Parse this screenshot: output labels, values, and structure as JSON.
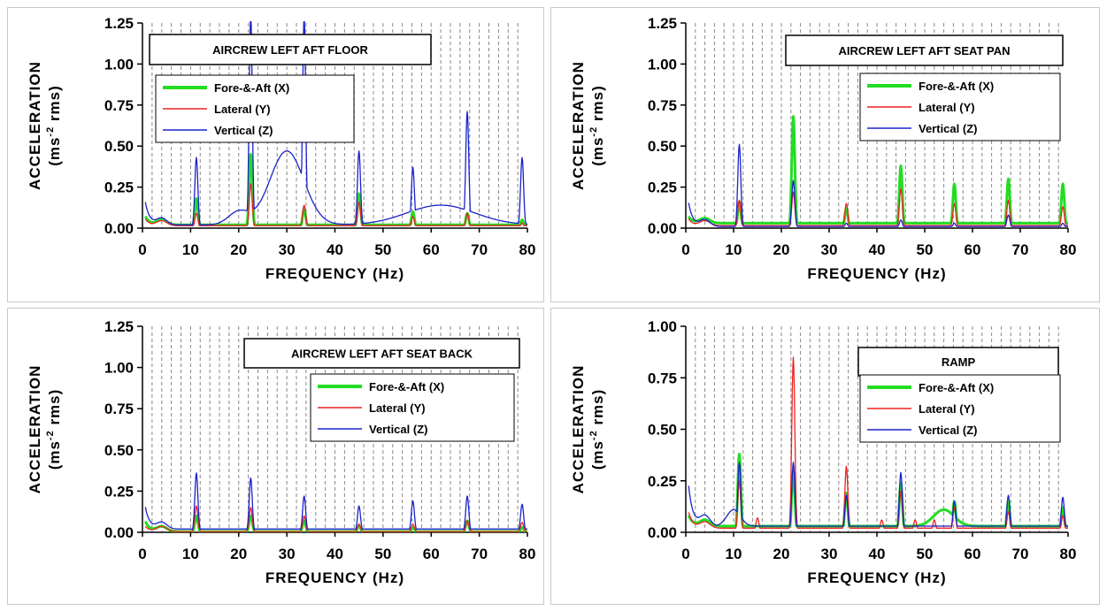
{
  "colors": {
    "fore_aft": "#22dd22",
    "lateral": "#ee2222",
    "vertical": "#1a22cc",
    "grid": "#888888"
  },
  "chart_data": [
    {
      "type": "line",
      "title": "AIRCREW LEFT AFT FLOOR",
      "xlabel": "FREQUENCY (Hz)",
      "ylabel_line1": "ACCELERATION",
      "ylabel_line2_pre": "(ms",
      "ylabel_line2_sup": "-2",
      "ylabel_line2_post": " rms)",
      "xlim": [
        0,
        80
      ],
      "ylim": [
        0,
        1.25
      ],
      "xticks": [
        "0",
        "10",
        "20",
        "30",
        "40",
        "50",
        "60",
        "70",
        "80"
      ],
      "yticks": [
        "0.00",
        "0.25",
        "0.50",
        "0.75",
        "1.00",
        "1.25"
      ],
      "grid": "dashed vertical",
      "legend_position": "top-left",
      "series": [
        {
          "name": "Fore-&-Aft (X)",
          "color_key": "fore_aft",
          "baseline": 0.02,
          "start": [
            0.1,
            0.03
          ],
          "peaks": [
            [
              11.2,
              0.18
            ],
            [
              22.5,
              0.45
            ],
            [
              33.6,
              0.12
            ],
            [
              45,
              0.21
            ],
            [
              56.2,
              0.1
            ],
            [
              67.5,
              0.09
            ],
            [
              78.9,
              0.05
            ]
          ]
        },
        {
          "name": "Lateral (Y)",
          "color_key": "lateral",
          "baseline": 0.015,
          "start": [
            0.08,
            0.03
          ],
          "peaks": [
            [
              11.2,
              0.09
            ],
            [
              22.5,
              0.27
            ],
            [
              33.6,
              0.14
            ],
            [
              45,
              0.16
            ],
            [
              56.2,
              0.07
            ],
            [
              67.5,
              0.09
            ],
            [
              78.9,
              0.03
            ]
          ]
        },
        {
          "name": "Vertical (Z)",
          "color_key": "vertical",
          "baseline": 0.02,
          "start": [
            0.27,
            0.04
          ],
          "peaks": [
            [
              11.2,
              0.43
            ],
            [
              22.5,
              1.3
            ],
            [
              33.6,
              1.3
            ],
            [
              45,
              0.47
            ],
            [
              56.2,
              0.37
            ],
            [
              67.5,
              0.71
            ],
            [
              78.9,
              0.43
            ]
          ],
          "hills": [
            [
              30,
              0.45,
              5
            ],
            [
              62,
              0.12,
              10
            ],
            [
              20,
              0.08,
              3
            ]
          ]
        }
      ]
    },
    {
      "type": "line",
      "title": "AIRCREW LEFT AFT SEAT PAN",
      "xlabel": "FREQUENCY (Hz)",
      "ylabel_line1": "ACCELERATION",
      "ylabel_line2_pre": "(ms",
      "ylabel_line2_sup": "-2",
      "ylabel_line2_post": " rms)",
      "xlim": [
        0,
        80
      ],
      "ylim": [
        0,
        1.25
      ],
      "xticks": [
        "0",
        "10",
        "20",
        "30",
        "40",
        "50",
        "60",
        "70",
        "80"
      ],
      "yticks": [
        "0.00",
        "0.25",
        "0.50",
        "0.75",
        "1.00",
        "1.25"
      ],
      "grid": "dashed vertical",
      "legend_position": "top-right",
      "series": [
        {
          "name": "Fore-&-Aft (X)",
          "color_key": "fore_aft",
          "baseline": 0.03,
          "start": [
            0.08,
            0.03
          ],
          "peaks": [
            [
              11.2,
              0.16
            ],
            [
              22.5,
              0.68
            ],
            [
              33.6,
              0.12
            ],
            [
              45,
              0.38
            ],
            [
              56.2,
              0.27
            ],
            [
              67.5,
              0.3
            ],
            [
              78.9,
              0.27
            ]
          ]
        },
        {
          "name": "Lateral (Y)",
          "color_key": "lateral",
          "baseline": 0.015,
          "start": [
            0.08,
            0.03
          ],
          "peaks": [
            [
              11.2,
              0.17
            ],
            [
              22.5,
              0.22
            ],
            [
              33.6,
              0.15
            ],
            [
              45,
              0.24
            ],
            [
              56.2,
              0.15
            ],
            [
              67.5,
              0.17
            ],
            [
              78.9,
              0.13
            ]
          ]
        },
        {
          "name": "Vertical (Z)",
          "color_key": "vertical",
          "baseline": 0.01,
          "start": [
            0.28,
            0.04
          ],
          "peaks": [
            [
              11.2,
              0.51
            ],
            [
              22.5,
              0.29
            ],
            [
              33.6,
              0.03
            ],
            [
              45,
              0.05
            ],
            [
              56.2,
              0.03
            ],
            [
              67.5,
              0.08
            ],
            [
              78.9,
              0.03
            ]
          ]
        }
      ]
    },
    {
      "type": "line",
      "title": "AIRCREW LEFT AFT SEAT BACK",
      "xlabel": "FREQUENCY (Hz)",
      "ylabel_line1": "ACCELERATION",
      "ylabel_line2_pre": "(ms",
      "ylabel_line2_sup": "-2",
      "ylabel_line2_post": " rms)",
      "xlim": [
        0,
        80
      ],
      "ylim": [
        0,
        1.25
      ],
      "xticks": [
        "0",
        "10",
        "20",
        "30",
        "40",
        "50",
        "60",
        "70",
        "80"
      ],
      "yticks": [
        "0.00",
        "0.25",
        "0.50",
        "0.75",
        "1.00",
        "1.25"
      ],
      "grid": "dashed vertical",
      "legend_position": "right",
      "series": [
        {
          "name": "Fore-&-Aft (X)",
          "color_key": "fore_aft",
          "baseline": 0.005,
          "start": [
            0.12,
            0.03
          ],
          "peaks": [
            [
              11.2,
              0.1
            ],
            [
              22.5,
              0.1
            ],
            [
              33.6,
              0.07
            ],
            [
              45,
              0.04
            ],
            [
              56.2,
              0.03
            ],
            [
              67.5,
              0.07
            ],
            [
              78.9,
              0.03
            ]
          ]
        },
        {
          "name": "Lateral (Y)",
          "color_key": "lateral",
          "baseline": 0.005,
          "start": [
            0.06,
            0.03
          ],
          "peaks": [
            [
              11.2,
              0.16
            ],
            [
              22.5,
              0.15
            ],
            [
              33.6,
              0.1
            ],
            [
              45,
              0.05
            ],
            [
              56.2,
              0.05
            ],
            [
              67.5,
              0.07
            ],
            [
              78.9,
              0.06
            ]
          ]
        },
        {
          "name": "Vertical (Z)",
          "color_key": "vertical",
          "baseline": 0.02,
          "start": [
            0.26,
            0.04
          ],
          "peaks": [
            [
              11.2,
              0.36
            ],
            [
              22.5,
              0.33
            ],
            [
              33.6,
              0.22
            ],
            [
              45,
              0.16
            ],
            [
              56.2,
              0.19
            ],
            [
              67.5,
              0.22
            ],
            [
              78.9,
              0.17
            ]
          ]
        }
      ]
    },
    {
      "type": "line",
      "title": "RAMP",
      "xlabel": "FREQUENCY (Hz)",
      "ylabel_line1": "ACCELERATION",
      "ylabel_line2_pre": "(ms",
      "ylabel_line2_sup": "-2",
      "ylabel_line2_post": " rms)",
      "xlim": [
        0,
        80
      ],
      "ylim": [
        0,
        1.0
      ],
      "xticks": [
        "0",
        "10",
        "20",
        "30",
        "40",
        "50",
        "60",
        "70",
        "80"
      ],
      "yticks": [
        "0.00",
        "0.25",
        "0.50",
        "0.75",
        "1.00"
      ],
      "grid": "dashed vertical",
      "legend_position": "right",
      "series": [
        {
          "name": "Fore-&-Aft (X)",
          "color_key": "fore_aft",
          "baseline": 0.03,
          "start": [
            0.1,
            0.03
          ],
          "peaks": [
            [
              11.2,
              0.38
            ],
            [
              22.5,
              0.3
            ],
            [
              33.6,
              0.19
            ],
            [
              45,
              0.24
            ],
            [
              56.2,
              0.15
            ],
            [
              67.5,
              0.15
            ],
            [
              78.9,
              0.12
            ]
          ],
          "hills": [
            [
              54,
              0.08,
              3
            ]
          ]
        },
        {
          "name": "Lateral (Y)",
          "color_key": "lateral",
          "baseline": 0.02,
          "start": [
            0.15,
            0.03
          ],
          "peaks": [
            [
              11.2,
              0.25
            ],
            [
              22.5,
              0.85
            ],
            [
              33.6,
              0.32
            ],
            [
              45,
              0.2
            ],
            [
              56.2,
              0.12
            ],
            [
              67.5,
              0.1
            ],
            [
              78.9,
              0.08
            ],
            [
              15,
              0.07
            ],
            [
              41,
              0.06
            ],
            [
              48,
              0.06
            ],
            [
              52,
              0.06
            ]
          ]
        },
        {
          "name": "Vertical (Z)",
          "color_key": "vertical",
          "baseline": 0.03,
          "start": [
            0.38,
            0.05
          ],
          "peaks": [
            [
              11.2,
              0.34
            ],
            [
              22.5,
              0.34
            ],
            [
              33.6,
              0.18
            ],
            [
              45,
              0.29
            ],
            [
              56.2,
              0.15
            ],
            [
              67.5,
              0.18
            ],
            [
              78.9,
              0.17
            ]
          ],
          "hills": [
            [
              10,
              0.08,
              2
            ]
          ]
        }
      ]
    }
  ]
}
